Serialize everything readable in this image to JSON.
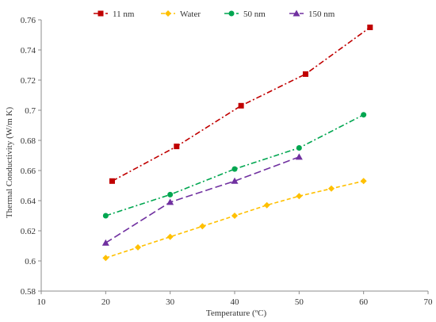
{
  "chart_data": {
    "type": "line",
    "title": "",
    "xlabel": "Temperature (ºC)",
    "ylabel": "Thermal Conductivity (W/m K)",
    "xlim": [
      10,
      70
    ],
    "ylim": [
      0.58,
      0.76
    ],
    "xticks": [
      "10",
      "20",
      "30",
      "40",
      "50",
      "60",
      "70"
    ],
    "yticks": [
      "0.58",
      "0.6",
      "0.62",
      "0.64",
      "0.66",
      "0.68",
      "0.7",
      "0.72",
      "0.74",
      "0.76"
    ],
    "grid": false,
    "legend_position": "top",
    "series": [
      {
        "name": "11 nm",
        "color": "#C00000",
        "marker": "square",
        "line": "dash-dot",
        "x": [
          21,
          31,
          41,
          51,
          61
        ],
        "y": [
          0.653,
          0.676,
          0.703,
          0.724,
          0.755
        ]
      },
      {
        "name": "Water",
        "color": "#FFC000",
        "marker": "diamond",
        "line": "dash",
        "x": [
          20,
          25,
          30,
          35,
          40,
          45,
          50,
          55,
          60
        ],
        "y": [
          0.602,
          0.609,
          0.616,
          0.623,
          0.63,
          0.637,
          0.643,
          0.648,
          0.653
        ]
      },
      {
        "name": "50 nm",
        "color": "#00A650",
        "marker": "circle",
        "line": "dash-dot",
        "x": [
          20,
          30,
          40,
          50,
          60
        ],
        "y": [
          0.63,
          0.644,
          0.661,
          0.675,
          0.697
        ]
      },
      {
        "name": "150 nm",
        "color": "#7030A0",
        "marker": "triangle",
        "line": "long-dash",
        "x": [
          20,
          30,
          40,
          50
        ],
        "y": [
          0.612,
          0.639,
          0.653,
          0.669
        ]
      }
    ]
  }
}
